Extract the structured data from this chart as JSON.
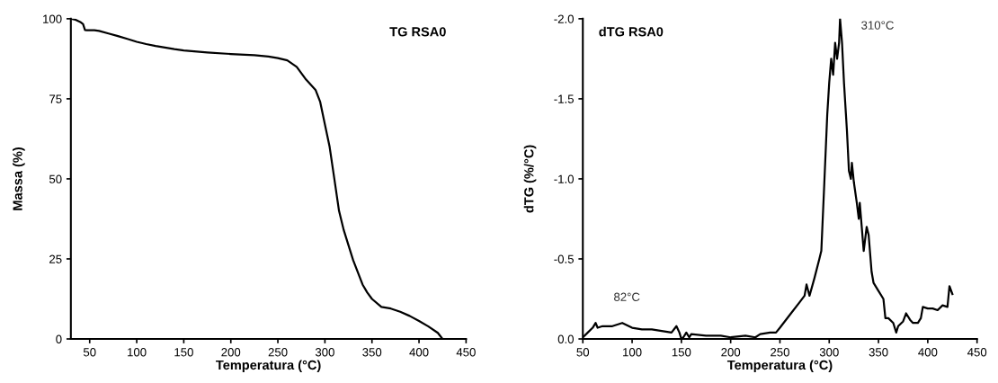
{
  "chart_data": [
    {
      "type": "line",
      "title": "TG RSA0",
      "xlabel": "Temperatura (°C)",
      "ylabel": "Massa (%)",
      "x": [
        30,
        35,
        40,
        43,
        45,
        47,
        55,
        60,
        70,
        80,
        90,
        100,
        110,
        120,
        130,
        140,
        150,
        175,
        200,
        225,
        240,
        250,
        260,
        270,
        280,
        290,
        295,
        300,
        305,
        310,
        315,
        320,
        330,
        340,
        345,
        350,
        360,
        370,
        380,
        390,
        400,
        410,
        420,
        425
      ],
      "series": [
        {
          "color": "#000000",
          "values": [
            100,
            99.7,
            99,
            98.3,
            96.5,
            96.4,
            96.4,
            96.2,
            95.4,
            94.6,
            93.7,
            92.8,
            92.1,
            91.5,
            91,
            90.5,
            90.1,
            89.5,
            89,
            88.6,
            88.2,
            87.7,
            87,
            85,
            81,
            77.8,
            74,
            67,
            60,
            50,
            40,
            34,
            24.6,
            17,
            14.5,
            12.5,
            10,
            9.5,
            8.5,
            7.2,
            5.6,
            3.9,
            1.9,
            0
          ]
        }
      ],
      "xlim": [
        30,
        450
      ],
      "ylim": [
        0,
        100
      ],
      "xticks": [
        50,
        100,
        150,
        200,
        250,
        300,
        350,
        400,
        450
      ],
      "yticks": [
        0,
        25,
        50,
        75,
        100
      ],
      "marker": "none",
      "line_style": "solid",
      "grid": false
    },
    {
      "type": "line",
      "title": "dTG RSA0",
      "xlabel": "Temperatura (°C)",
      "ylabel": "dTG (%/°C)",
      "x": [
        50,
        55,
        60,
        63,
        65,
        70,
        80,
        90,
        100,
        110,
        120,
        130,
        140,
        145,
        148,
        150,
        152,
        155,
        158,
        160,
        175,
        190,
        200,
        215,
        225,
        230,
        240,
        246,
        250,
        260,
        270,
        275,
        277,
        280,
        285,
        290,
        292,
        295,
        298,
        300,
        302,
        304,
        306,
        308,
        310,
        311,
        313,
        315,
        318,
        320,
        322,
        323,
        325,
        328,
        330,
        331,
        333,
        335,
        338,
        340,
        343,
        345,
        350,
        355,
        357,
        360,
        365,
        368,
        370,
        375,
        378,
        382,
        385,
        390,
        393,
        395,
        400,
        405,
        410,
        415,
        420,
        422,
        425
      ],
      "series": [
        {
          "color": "#000000",
          "values": [
            -0.01,
            -0.04,
            -0.07,
            -0.1,
            -0.07,
            -0.08,
            -0.08,
            -0.1,
            -0.07,
            -0.06,
            -0.06,
            -0.05,
            -0.04,
            -0.08,
            -0.04,
            0.0,
            -0.01,
            -0.04,
            -0.01,
            -0.03,
            -0.02,
            -0.02,
            -0.01,
            -0.02,
            -0.01,
            -0.03,
            -0.04,
            -0.04,
            -0.07,
            -0.15,
            -0.23,
            -0.27,
            -0.34,
            -0.27,
            -0.38,
            -0.5,
            -0.55,
            -0.97,
            -1.4,
            -1.6,
            -1.75,
            -1.65,
            -1.85,
            -1.75,
            -1.85,
            -2.0,
            -1.85,
            -1.6,
            -1.3,
            -1.05,
            -1.0,
            -1.1,
            -0.98,
            -0.85,
            -0.75,
            -0.85,
            -0.7,
            -0.55,
            -0.7,
            -0.65,
            -0.42,
            -0.35,
            -0.3,
            -0.25,
            -0.13,
            -0.13,
            -0.1,
            -0.04,
            -0.08,
            -0.11,
            -0.16,
            -0.12,
            -0.1,
            -0.1,
            -0.13,
            -0.2,
            -0.19,
            -0.19,
            -0.18,
            -0.21,
            -0.2,
            -0.33,
            -0.28
          ]
        }
      ],
      "xlim": [
        50,
        450
      ],
      "ylim": [
        0.0,
        -2.0
      ],
      "xticks": [
        50,
        100,
        150,
        200,
        250,
        300,
        350,
        400,
        450
      ],
      "yticks": [
        {
          "value": 0,
          "label": "0.0"
        },
        {
          "value": -0.5,
          "label": "-0.5"
        },
        {
          "value": -1,
          "label": "-1.0"
        },
        {
          "value": -1.5,
          "label": "-1.5"
        },
        {
          "value": -2,
          "label": "-2.0"
        }
      ],
      "annotations": [
        {
          "text": "82°C",
          "x": 82,
          "y": -0.1
        },
        {
          "text": "310°C",
          "x": 311,
          "y": -2.0
        }
      ],
      "marker": "none",
      "line_style": "solid",
      "grid": false
    }
  ]
}
